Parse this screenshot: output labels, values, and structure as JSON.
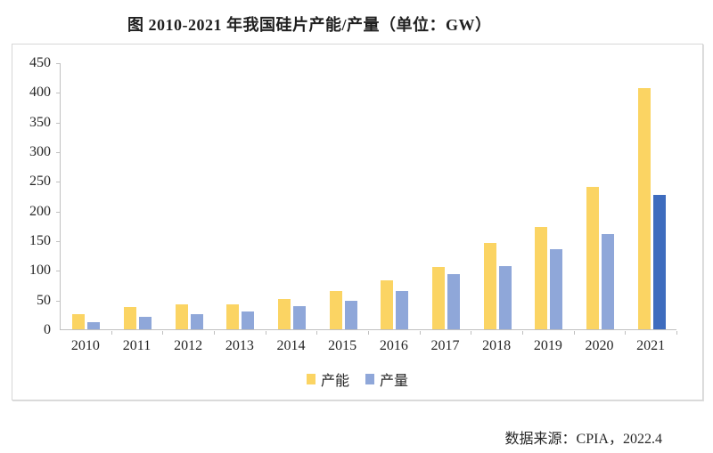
{
  "title": "图 2010-2021 年我国硅片产能/产量（单位：GW）",
  "source": "数据来源：CPIA，2022.4",
  "colors": {
    "capacity": "#fbd463",
    "production": "#8fa7d9",
    "production_highlight": "#3e6cbe",
    "axis": "#c0c0c0",
    "border": "#d6d6d6",
    "text": "#262626"
  },
  "chart_data": {
    "type": "bar",
    "title": "图 2010-2021 年我国硅片产能/产量（单位：GW）",
    "unit": "GW",
    "categories": [
      "2010",
      "2011",
      "2012",
      "2013",
      "2014",
      "2015",
      "2016",
      "2017",
      "2018",
      "2019",
      "2020",
      "2021"
    ],
    "series": [
      {
        "name": "产能",
        "color_key": "capacity",
        "values": [
          25,
          37,
          42,
          42,
          51,
          65,
          82,
          105,
          146,
          173,
          240,
          407
        ]
      },
      {
        "name": "产量",
        "color_key": "production",
        "values": [
          12,
          21,
          26,
          30,
          39,
          48,
          65,
          93,
          107,
          135,
          161,
          227
        ],
        "highlight_index": 11,
        "highlight_color_key": "production_highlight"
      }
    ],
    "ylim": [
      0,
      450
    ],
    "ytick_step": 50,
    "grid": false,
    "legend_position": "bottom-center",
    "legend": [
      "产能",
      "产量"
    ],
    "source": "数据来源：CPIA，2022.4"
  }
}
